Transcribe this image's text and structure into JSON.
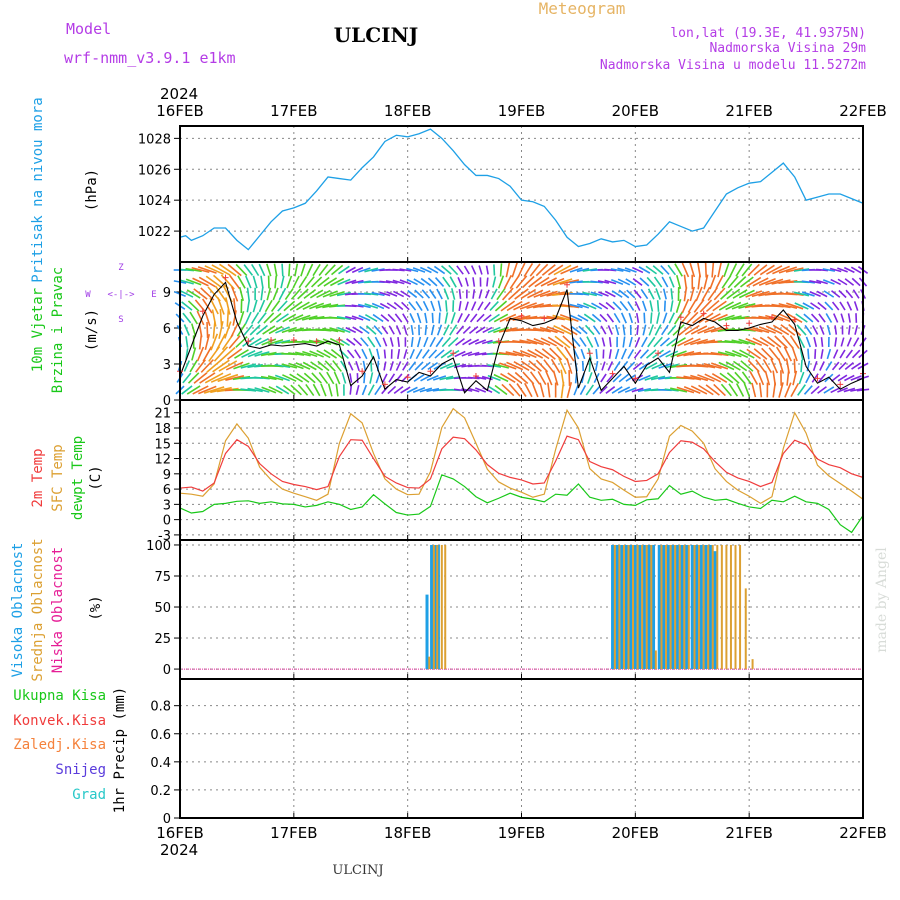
{
  "header": {
    "model_label": "Model",
    "model_name": "wrf-nmm_v3.9.1 e1km",
    "station": "ULCINJ",
    "product": "Meteogram",
    "lonlat": "lon,lat (19.3E, 41.9375N)",
    "elevation": "Nadmorska Visina 29m",
    "model_elevation": "Nadmorska Visina u modelu 11.5272m",
    "year": "2024",
    "footer_station": "ULCINJ",
    "credit": "made by Angel"
  },
  "colors": {
    "pressure": "#1ea0e6",
    "wind_label": "#19c819",
    "temp2m": "#f03c3c",
    "sfc": "#dca032",
    "dewpt": "#19c819",
    "high_cloud": "#1ea0e6",
    "mid_cloud": "#dca032",
    "low_cloud": "#e61e96",
    "ukupna": "#19c819",
    "konvek": "#f03c3c",
    "zaledj": "#f5823c",
    "snijeg": "#5a3cdc",
    "grad": "#28c8c8",
    "compass": "#a03ce6",
    "meteogram_title": "#e6b464",
    "header_purple": "#b43ce6"
  },
  "chart_data": [
    {
      "type": "line",
      "panel": "pressure",
      "title": "",
      "ylabel_series": "Pritisak na nivou mora",
      "ylabel_unit": "(hPa)",
      "x_dates": [
        "16FEB",
        "17FEB",
        "18FEB",
        "19FEB",
        "20FEB",
        "21FEB",
        "22FEB"
      ],
      "ylim": [
        1020,
        1028.8
      ],
      "yticks": [
        "1022",
        "1024",
        "1026",
        "1028"
      ],
      "grid": true,
      "series": [
        {
          "name": "Pritisak na nivou mora",
          "x": [
            0,
            0.05,
            0.1,
            0.2,
            0.3,
            0.4,
            0.5,
            0.6,
            0.7,
            0.8,
            0.9,
            1.0,
            1.1,
            1.2,
            1.3,
            1.4,
            1.5,
            1.6,
            1.7,
            1.8,
            1.9,
            2.0,
            2.1,
            2.2,
            2.3,
            2.4,
            2.5,
            2.6,
            2.7,
            2.8,
            2.9,
            3.0,
            3.1,
            3.2,
            3.3,
            3.4,
            3.5,
            3.6,
            3.7,
            3.8,
            3.9,
            4.0,
            4.1,
            4.2,
            4.3,
            4.4,
            4.5,
            4.6,
            4.7,
            4.8,
            4.9,
            5.0,
            5.1,
            5.2,
            5.3,
            5.4,
            5.5,
            5.6,
            5.7,
            5.8,
            5.9,
            6.0
          ],
          "values": [
            1021.6,
            1021.7,
            1021.4,
            1021.7,
            1022.2,
            1022.2,
            1021.4,
            1020.8,
            1021.7,
            1022.6,
            1023.3,
            1023.5,
            1023.8,
            1024.6,
            1025.5,
            1025.4,
            1025.3,
            1026.1,
            1026.8,
            1027.8,
            1028.2,
            1028.1,
            1028.3,
            1028.6,
            1028.0,
            1027.2,
            1026.3,
            1025.6,
            1025.6,
            1025.4,
            1024.9,
            1024.0,
            1023.9,
            1023.6,
            1022.7,
            1021.6,
            1021.0,
            1021.2,
            1021.5,
            1021.3,
            1021.4,
            1021.0,
            1021.1,
            1021.8,
            1022.6,
            1022.3,
            1022.0,
            1022.2,
            1023.3,
            1024.4,
            1024.8,
            1025.1,
            1025.2,
            1025.8,
            1026.4,
            1025.5,
            1024.0,
            1024.2,
            1024.4,
            1024.4,
            1024.1,
            1023.8
          ]
        }
      ]
    },
    {
      "type": "line",
      "panel": "wind",
      "title": "",
      "ylabel_series_1": "10m Vjetar",
      "ylabel_series_2": "Brzina i Pravac",
      "ylabel_unit": "(m/s)",
      "compass": {
        "n": "Z",
        "s": "S",
        "w": "W",
        "e": "E",
        "mid": "<-|->"
      },
      "ylim": [
        0,
        11.5
      ],
      "yticks": [
        "0",
        "3",
        "6",
        "9"
      ],
      "grid": true,
      "series": [
        {
          "name": "speed",
          "x": [
            0,
            0.1,
            0.2,
            0.3,
            0.4,
            0.5,
            0.6,
            0.7,
            0.8,
            0.9,
            1.0,
            1.1,
            1.2,
            1.3,
            1.4,
            1.5,
            1.6,
            1.7,
            1.8,
            1.9,
            2.0,
            2.1,
            2.2,
            2.3,
            2.4,
            2.5,
            2.6,
            2.7,
            2.8,
            2.9,
            3.0,
            3.1,
            3.2,
            3.3,
            3.4,
            3.5,
            3.6,
            3.7,
            3.8,
            3.9,
            4.0,
            4.1,
            4.2,
            4.3,
            4.4,
            4.5,
            4.6,
            4.7,
            4.8,
            4.9,
            5.0,
            5.1,
            5.2,
            5.3,
            5.4,
            5.5,
            5.6,
            5.7,
            5.8,
            5.9,
            6.0
          ],
          "values": [
            2.0,
            4.5,
            7.0,
            8.8,
            9.8,
            6.5,
            4.5,
            4.3,
            4.6,
            4.5,
            4.6,
            4.7,
            4.5,
            4.9,
            4.6,
            1.2,
            2.0,
            3.6,
            0.9,
            1.7,
            1.5,
            2.3,
            2.0,
            3.0,
            3.5,
            0.6,
            1.6,
            0.8,
            4.5,
            6.8,
            6.6,
            6.2,
            6.4,
            6.8,
            9.2,
            1.0,
            3.5,
            0.8,
            1.8,
            2.8,
            1.4,
            2.9,
            3.5,
            2.3,
            6.5,
            6.2,
            6.8,
            6.5,
            5.8,
            5.8,
            6.0,
            6.3,
            6.5,
            7.5,
            6.3,
            2.8,
            1.4,
            1.9,
            0.9,
            1.4,
            1.8
          ]
        }
      ]
    },
    {
      "type": "line",
      "panel": "temperature",
      "title": "",
      "ylim": [
        -4,
        23.5
      ],
      "yticks": [
        "-3",
        "0",
        "3",
        "6",
        "9",
        "12",
        "15",
        "18",
        "21"
      ],
      "grid": true,
      "series": [
        {
          "name": "2m Temp",
          "x": [
            0,
            0.1,
            0.2,
            0.3,
            0.4,
            0.5,
            0.6,
            0.7,
            0.8,
            0.9,
            1.0,
            1.1,
            1.2,
            1.3,
            1.4,
            1.5,
            1.6,
            1.7,
            1.8,
            1.9,
            2.0,
            2.1,
            2.2,
            2.3,
            2.4,
            2.5,
            2.6,
            2.7,
            2.8,
            2.9,
            3.0,
            3.1,
            3.2,
            3.3,
            3.4,
            3.5,
            3.6,
            3.7,
            3.8,
            3.9,
            4.0,
            4.1,
            4.2,
            4.3,
            4.4,
            4.5,
            4.6,
            4.7,
            4.8,
            4.9,
            5.0,
            5.1,
            5.2,
            5.3,
            5.4,
            5.5,
            5.6,
            5.7,
            5.8,
            5.9,
            6.0
          ],
          "values": [
            6.2,
            6.4,
            5.6,
            7.2,
            13.0,
            15.7,
            14.4,
            11.0,
            9.0,
            7.5,
            6.9,
            6.5,
            5.9,
            6.5,
            12.4,
            15.7,
            15.6,
            12.0,
            8.5,
            7.2,
            6.3,
            6.2,
            8.0,
            13.9,
            16.2,
            15.9,
            13.7,
            10.8,
            9.1,
            8.3,
            7.8,
            7.0,
            7.2,
            11.5,
            16.4,
            15.7,
            11.4,
            10.4,
            9.8,
            8.5,
            7.5,
            7.7,
            9.0,
            13.2,
            15.5,
            15.2,
            13.9,
            11.4,
            9.3,
            8.2,
            7.5,
            6.5,
            7.3,
            13.0,
            15.6,
            14.7,
            11.9,
            10.8,
            10.2,
            9.0,
            8.3
          ]
        },
        {
          "name": "SFC Temp",
          "x": [
            0,
            0.1,
            0.2,
            0.3,
            0.4,
            0.5,
            0.6,
            0.7,
            0.8,
            0.9,
            1.0,
            1.1,
            1.2,
            1.3,
            1.4,
            1.5,
            1.6,
            1.7,
            1.8,
            1.9,
            2.0,
            2.1,
            2.2,
            2.3,
            2.4,
            2.5,
            2.6,
            2.7,
            2.8,
            2.9,
            3.0,
            3.1,
            3.2,
            3.3,
            3.4,
            3.5,
            3.6,
            3.7,
            3.8,
            3.9,
            4.0,
            4.1,
            4.2,
            4.3,
            4.4,
            4.5,
            4.6,
            4.7,
            4.8,
            4.9,
            5.0,
            5.1,
            5.2,
            5.3,
            5.4,
            5.5,
            5.6,
            5.7,
            5.8,
            5.9,
            6.0
          ],
          "values": [
            5.2,
            5.0,
            4.6,
            7.0,
            15.5,
            18.8,
            16.0,
            10.3,
            7.8,
            6.0,
            5.2,
            4.5,
            3.8,
            5.0,
            15.0,
            20.8,
            19.0,
            13.0,
            8.0,
            6.0,
            4.9,
            5.0,
            9.4,
            18.1,
            21.8,
            20.0,
            15.0,
            9.9,
            7.4,
            6.2,
            5.4,
            4.4,
            5.0,
            13.8,
            21.5,
            18.0,
            10.0,
            8.0,
            7.3,
            5.8,
            4.4,
            4.5,
            8.0,
            16.4,
            18.5,
            17.4,
            15.0,
            10.0,
            7.5,
            5.8,
            4.6,
            3.2,
            4.5,
            14.0,
            21.0,
            17.0,
            10.7,
            8.6,
            7.1,
            5.6,
            4.0
          ]
        },
        {
          "name": "dewpt Temp",
          "x": [
            0,
            0.1,
            0.2,
            0.3,
            0.4,
            0.5,
            0.6,
            0.7,
            0.8,
            0.9,
            1.0,
            1.1,
            1.2,
            1.3,
            1.4,
            1.5,
            1.6,
            1.7,
            1.8,
            1.9,
            2.0,
            2.1,
            2.2,
            2.3,
            2.4,
            2.5,
            2.6,
            2.7,
            2.8,
            2.9,
            3.0,
            3.1,
            3.2,
            3.3,
            3.4,
            3.5,
            3.6,
            3.7,
            3.8,
            3.9,
            4.0,
            4.1,
            4.2,
            4.3,
            4.4,
            4.5,
            4.6,
            4.7,
            4.8,
            4.9,
            5.0,
            5.1,
            5.2,
            5.3,
            5.4,
            5.5,
            5.6,
            5.7,
            5.8,
            5.9,
            6.0
          ],
          "values": [
            2.3,
            1.3,
            1.6,
            3.0,
            3.2,
            3.6,
            3.7,
            3.2,
            3.5,
            3.1,
            3.0,
            2.5,
            2.8,
            3.5,
            3.0,
            2.0,
            2.5,
            4.9,
            3.1,
            1.4,
            0.9,
            1.1,
            2.6,
            8.8,
            8.0,
            6.5,
            4.5,
            3.3,
            4.2,
            5.2,
            4.4,
            4.0,
            3.5,
            5.0,
            4.8,
            7.0,
            4.4,
            3.8,
            4.0,
            3.0,
            2.8,
            3.9,
            4.1,
            6.7,
            5.0,
            5.6,
            4.4,
            3.8,
            4.0,
            3.2,
            2.5,
            2.2,
            3.8,
            3.5,
            4.6,
            3.5,
            3.2,
            2.0,
            -1.0,
            -2.5,
            0.8
          ]
        }
      ]
    },
    {
      "type": "bar",
      "panel": "clouds",
      "title": "",
      "ylabel_unit": "(%)",
      "ylim": [
        -8,
        104
      ],
      "yticks": [
        "0",
        "25",
        "50",
        "75",
        "100"
      ],
      "grid": true,
      "series": [
        {
          "name": "Visoka Oblacnost",
          "x": [
            2.17,
            2.21,
            2.24,
            2.27,
            3.8,
            3.84,
            3.88,
            3.92,
            3.96,
            4.0,
            4.04,
            4.08,
            4.12,
            4.16,
            4.21,
            4.25,
            4.29,
            4.33,
            4.37,
            4.41,
            4.45,
            4.5,
            4.54,
            4.58,
            4.62,
            4.66,
            4.7
          ],
          "values": [
            60,
            100,
            100,
            100,
            100,
            100,
            100,
            100,
            100,
            100,
            100,
            100,
            100,
            100,
            100,
            100,
            100,
            100,
            100,
            100,
            100,
            100,
            100,
            100,
            100,
            100,
            95
          ]
        },
        {
          "name": "Srednja Oblacnost",
          "x": [
            2.19,
            2.23,
            2.26,
            2.3,
            2.33,
            3.82,
            3.86,
            3.9,
            3.94,
            3.98,
            4.02,
            4.06,
            4.1,
            4.14,
            4.18,
            4.23,
            4.27,
            4.31,
            4.35,
            4.39,
            4.43,
            4.47,
            4.52,
            4.56,
            4.6,
            4.64,
            4.68,
            4.72,
            4.76,
            4.8,
            4.84,
            4.88,
            4.92,
            4.97,
            5.03
          ],
          "values": [
            10,
            100,
            100,
            100,
            100,
            100,
            100,
            100,
            100,
            100,
            100,
            100,
            100,
            100,
            15,
            100,
            100,
            100,
            100,
            100,
            100,
            100,
            100,
            100,
            100,
            100,
            100,
            100,
            100,
            100,
            100,
            100,
            100,
            65,
            8
          ]
        },
        {
          "name": "Niska Oblacnost",
          "x": [],
          "values": []
        }
      ]
    },
    {
      "type": "bar",
      "panel": "precipitation",
      "title": "",
      "ylabel": "1hr Precip (mm)",
      "ylim": [
        0,
        0.99
      ],
      "yticks": [
        "0",
        "0.2",
        "0.4",
        "0.6",
        "0.8"
      ],
      "grid": true,
      "legend": [
        "Ukupna Kisa",
        "Konvek.Kisa",
        "Zaledj.Kisa",
        "Snijeg",
        "Grad"
      ],
      "series": [
        {
          "name": "Ukupna Kisa",
          "values": []
        },
        {
          "name": "Konvek.Kisa",
          "values": []
        },
        {
          "name": "Zaledj.Kisa",
          "values": []
        },
        {
          "name": "Snijeg",
          "values": []
        },
        {
          "name": "Grad",
          "values": []
        }
      ]
    }
  ]
}
